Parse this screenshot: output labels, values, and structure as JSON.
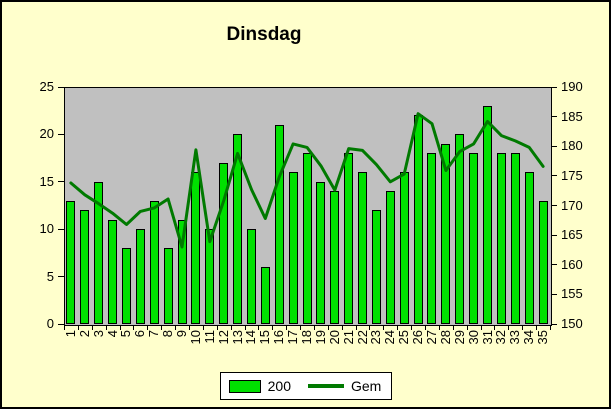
{
  "title": "Dinsdag",
  "colors": {
    "background": "#FFFFCC",
    "plot_background": "#C0C0C0",
    "bar_fill": "#00E000",
    "bar_border": "#000000",
    "line": "#007A00",
    "legend_background": "#FFFFFF",
    "text": "#000000"
  },
  "legend": {
    "items": [
      {
        "label": "200",
        "swatch": "bar"
      },
      {
        "label": "Gem",
        "swatch": "line"
      }
    ]
  },
  "chart_data": {
    "type": "bar",
    "title": "Dinsdag",
    "categories": [
      1,
      2,
      3,
      4,
      5,
      6,
      7,
      8,
      9,
      10,
      11,
      12,
      13,
      14,
      15,
      16,
      17,
      18,
      19,
      20,
      21,
      22,
      23,
      24,
      25,
      26,
      27,
      28,
      29,
      30,
      31,
      32,
      33,
      34,
      35
    ],
    "series": [
      {
        "name": "200",
        "type": "bar",
        "axis": "left",
        "values": [
          13,
          12,
          15,
          11,
          8,
          10,
          13,
          8,
          11,
          16,
          10,
          17,
          20,
          10,
          6,
          21,
          16,
          18,
          15,
          14,
          18,
          16,
          12,
          14,
          16,
          22,
          18,
          19,
          20,
          18,
          23,
          18,
          18,
          16,
          13
        ]
      },
      {
        "name": "Gem",
        "type": "line",
        "axis": "right",
        "values": [
          173.8,
          171.8,
          170.3,
          168.7,
          166.8,
          169.0,
          169.6,
          171.1,
          163.0,
          179.4,
          163.9,
          170.8,
          178.8,
          172.7,
          167.8,
          174.8,
          180.4,
          179.8,
          176.7,
          172.6,
          179.6,
          179.3,
          176.9,
          174.0,
          175.3,
          185.5,
          183.8,
          175.9,
          179.1,
          180.4,
          184.2,
          181.8,
          180.9,
          179.8,
          176.6
        ]
      }
    ],
    "left_axis": {
      "min": 0,
      "max": 25,
      "step": 5,
      "ticks": [
        0,
        5,
        10,
        15,
        20,
        25
      ]
    },
    "right_axis": {
      "min": 150,
      "max": 190,
      "step": 5,
      "ticks": [
        150,
        155,
        160,
        165,
        170,
        175,
        180,
        185,
        190
      ]
    },
    "x_labels_rotation": -90,
    "grid": false,
    "legend_position": "bottom"
  }
}
